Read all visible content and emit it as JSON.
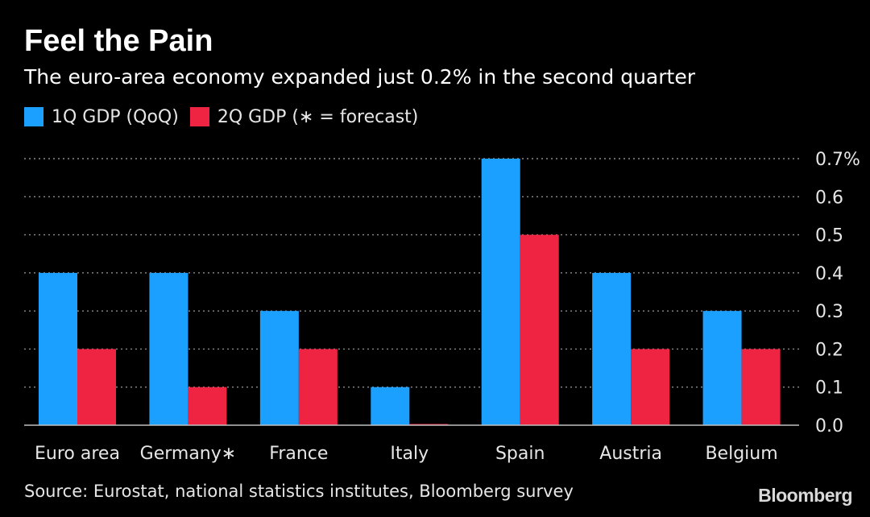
{
  "header": {
    "title": "Feel the Pain",
    "subtitle": "The euro-area economy expanded just 0.2% in the second quarter"
  },
  "footer": {
    "source": "Source: Eurostat, national statistics institutes, Bloomberg survey",
    "brand": "Bloomberg"
  },
  "colors": {
    "series1": "#1ba0ff",
    "series2": "#ef2443",
    "background": "#000000",
    "grid": "#8c8c8c"
  },
  "chart_data": {
    "type": "bar",
    "title": "Feel the Pain",
    "subtitle": "The euro-area economy expanded just 0.2% in the second quarter",
    "categories": [
      "Euro area",
      "Germany∗",
      "France",
      "Italy",
      "Spain",
      "Austria",
      "Belgium"
    ],
    "series": [
      {
        "name": "1Q GDP (QoQ)",
        "values": [
          0.4,
          0.4,
          0.3,
          0.1,
          0.7,
          0.4,
          0.3
        ]
      },
      {
        "name": "2Q GDP (∗ = forecast)",
        "values": [
          0.2,
          0.1,
          0.2,
          0.0,
          0.5,
          0.2,
          0.2
        ]
      }
    ],
    "ylim": [
      0,
      0.7
    ],
    "yticks": [
      0.0,
      0.1,
      0.2,
      0.3,
      0.4,
      0.5,
      0.6,
      0.7
    ],
    "ytick_labels": [
      "0.0",
      "0.1",
      "0.2",
      "0.3",
      "0.4",
      "0.5",
      "0.6",
      "0.7%"
    ],
    "y_axis_side": "right",
    "grid": true,
    "legend_position": "top-left",
    "xlabel": "",
    "ylabel": ""
  }
}
